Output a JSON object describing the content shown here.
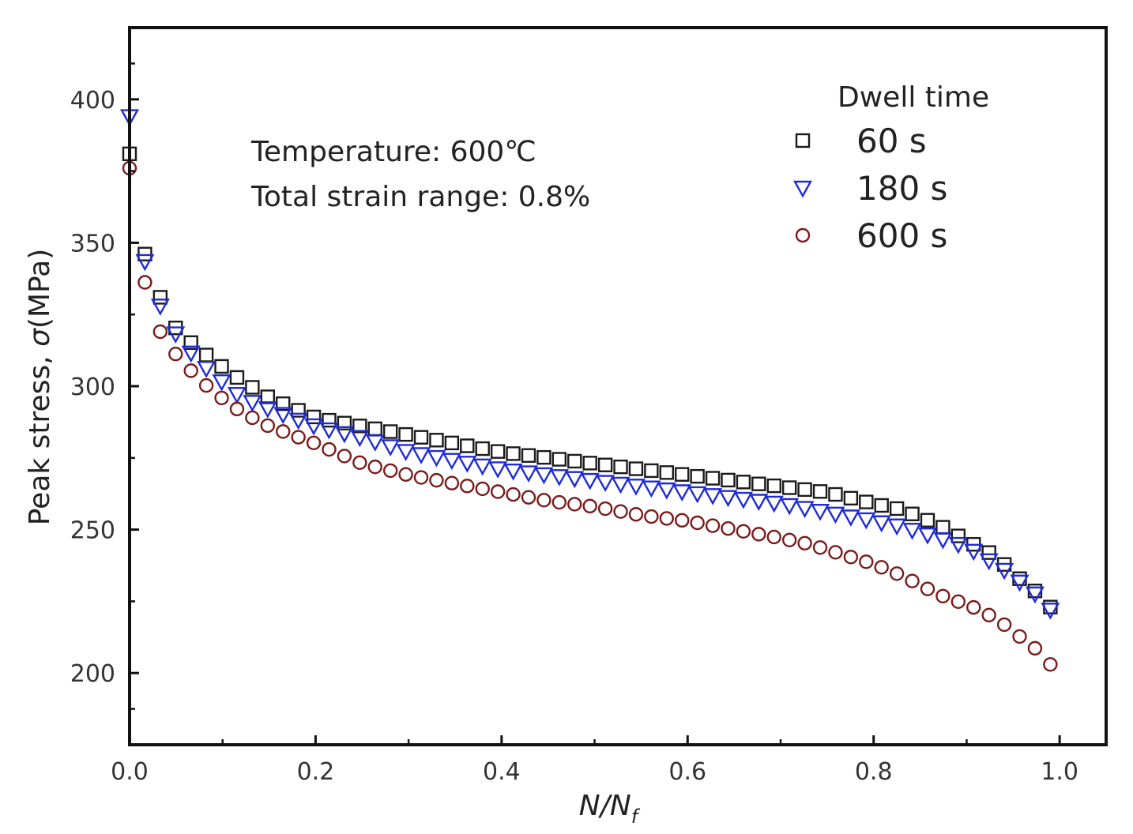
{
  "chart_data": {
    "type": "scatter",
    "xlabel_main": "N/N",
    "xlabel_sub": "f",
    "ylabel_prefix": "Peak stress, ",
    "ylabel_symbol": "σ",
    "ylabel_unit": "(MPa)",
    "xlim": [
      0.0,
      1.05
    ],
    "ylim": [
      175,
      425
    ],
    "xticks": [
      0.0,
      0.2,
      0.4,
      0.6,
      0.8,
      1.0
    ],
    "xtick_labels": [
      "0.0",
      "0.2",
      "0.4",
      "0.6",
      "0.8",
      "1.0"
    ],
    "yticks": [
      200,
      250,
      300,
      350,
      400
    ],
    "ytick_labels": [
      "200",
      "250",
      "300",
      "350",
      "400"
    ],
    "annotations": [
      "Temperature: 600℃",
      "Total strain range: 0.8%"
    ],
    "legend_title": "Dwell time",
    "legend_position": "top-right",
    "series": [
      {
        "name": "60 s",
        "marker": "square",
        "color": "#1a1a1a",
        "anchors": [
          [
            0.0,
            381
          ],
          [
            0.017,
            345
          ],
          [
            0.033,
            331
          ],
          [
            0.05,
            320
          ],
          [
            0.07,
            314
          ],
          [
            0.09,
            309
          ],
          [
            0.12,
            302
          ],
          [
            0.15,
            296
          ],
          [
            0.2,
            289
          ],
          [
            0.25,
            286
          ],
          [
            0.3,
            283
          ],
          [
            0.35,
            280
          ],
          [
            0.4,
            277
          ],
          [
            0.45,
            275
          ],
          [
            0.5,
            273
          ],
          [
            0.55,
            271
          ],
          [
            0.6,
            269
          ],
          [
            0.65,
            267
          ],
          [
            0.7,
            265
          ],
          [
            0.75,
            263
          ],
          [
            0.8,
            259
          ],
          [
            0.83,
            257
          ],
          [
            0.86,
            253
          ],
          [
            0.88,
            250
          ],
          [
            0.9,
            246
          ],
          [
            0.92,
            243
          ],
          [
            0.94,
            238
          ],
          [
            0.96,
            232
          ],
          [
            0.98,
            227
          ],
          [
            0.99,
            223
          ]
        ]
      },
      {
        "name": "180 s",
        "marker": "triangle-down",
        "color": "#1f2bd6",
        "anchors": [
          [
            0.0,
            394
          ],
          [
            0.017,
            342
          ],
          [
            0.033,
            328
          ],
          [
            0.05,
            318
          ],
          [
            0.07,
            310
          ],
          [
            0.09,
            304
          ],
          [
            0.12,
            296
          ],
          [
            0.15,
            292
          ],
          [
            0.2,
            286
          ],
          [
            0.25,
            282
          ],
          [
            0.3,
            277
          ],
          [
            0.35,
            274
          ],
          [
            0.4,
            271
          ],
          [
            0.45,
            269
          ],
          [
            0.5,
            267
          ],
          [
            0.55,
            265
          ],
          [
            0.6,
            263
          ],
          [
            0.65,
            261
          ],
          [
            0.7,
            259
          ],
          [
            0.75,
            256
          ],
          [
            0.8,
            253
          ],
          [
            0.83,
            251
          ],
          [
            0.86,
            248
          ],
          [
            0.88,
            246
          ],
          [
            0.9,
            244
          ],
          [
            0.92,
            240
          ],
          [
            0.94,
            236
          ],
          [
            0.96,
            231
          ],
          [
            0.98,
            226
          ],
          [
            0.99,
            222
          ]
        ]
      },
      {
        "name": "600 s",
        "marker": "circle",
        "color": "#7a1a1a",
        "anchors": [
          [
            0.0,
            376
          ],
          [
            0.017,
            335
          ],
          [
            0.033,
            319
          ],
          [
            0.05,
            311
          ],
          [
            0.07,
            304
          ],
          [
            0.09,
            298
          ],
          [
            0.12,
            291
          ],
          [
            0.15,
            286
          ],
          [
            0.2,
            280
          ],
          [
            0.25,
            273
          ],
          [
            0.3,
            269
          ],
          [
            0.35,
            266
          ],
          [
            0.4,
            263
          ],
          [
            0.45,
            260
          ],
          [
            0.5,
            258
          ],
          [
            0.55,
            255
          ],
          [
            0.6,
            253
          ],
          [
            0.65,
            250
          ],
          [
            0.7,
            247
          ],
          [
            0.73,
            245
          ],
          [
            0.76,
            242
          ],
          [
            0.8,
            238
          ],
          [
            0.83,
            234
          ],
          [
            0.86,
            229
          ],
          [
            0.88,
            226
          ],
          [
            0.9,
            224
          ],
          [
            0.92,
            221
          ],
          [
            0.94,
            217
          ],
          [
            0.96,
            212
          ],
          [
            0.98,
            207
          ],
          [
            0.99,
            203
          ]
        ]
      }
    ]
  }
}
